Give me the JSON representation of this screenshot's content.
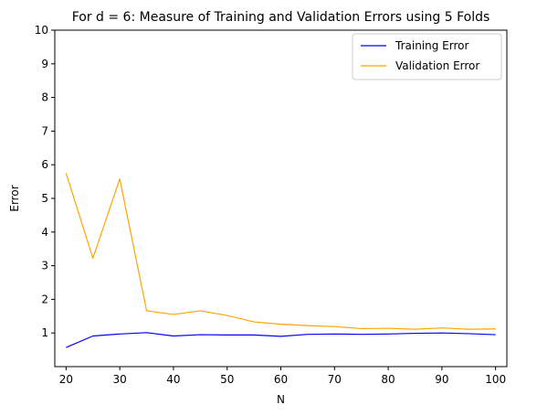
{
  "chart_data": {
    "type": "line",
    "title": "For d = 6: Measure of Training and Validation Errors using 5 Folds",
    "xlabel": "N",
    "ylabel": "Error",
    "x": [
      20,
      25,
      30,
      35,
      40,
      45,
      50,
      55,
      60,
      65,
      70,
      75,
      80,
      85,
      90,
      95,
      100
    ],
    "series": [
      {
        "name": "Training Error",
        "color": "#0000ff",
        "values": [
          0.57,
          0.91,
          0.97,
          1.01,
          0.91,
          0.95,
          0.94,
          0.94,
          0.9,
          0.96,
          0.97,
          0.96,
          0.97,
          0.99,
          1.0,
          0.98,
          0.95
        ]
      },
      {
        "name": "Validation Error",
        "color": "#ffa500",
        "values": [
          5.75,
          3.22,
          5.58,
          1.66,
          1.55,
          1.66,
          1.52,
          1.33,
          1.26,
          1.22,
          1.19,
          1.13,
          1.14,
          1.11,
          1.15,
          1.11,
          1.12
        ]
      }
    ],
    "xlim": [
      17.9,
      102.1
    ],
    "ylim": [
      0,
      10
    ],
    "xticks": [
      20,
      30,
      40,
      50,
      60,
      70,
      80,
      90,
      100
    ],
    "yticks": [
      1,
      2,
      3,
      4,
      5,
      6,
      7,
      8,
      9,
      10
    ],
    "grid": false,
    "legend": "top-right"
  }
}
